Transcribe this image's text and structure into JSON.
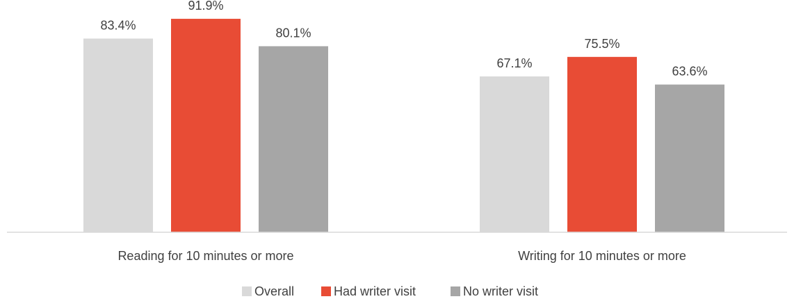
{
  "chart_data": {
    "type": "bar",
    "title": "",
    "xlabel": "",
    "ylabel": "",
    "ylim": [
      0,
      100
    ],
    "grid": false,
    "legend_position": "bottom",
    "categories": [
      "Reading for 10 minutes or more",
      "Writing for 10 minutes or more"
    ],
    "series": [
      {
        "name": "Overall",
        "color": "#d9d9d9",
        "values": [
          83.4,
          67.1
        ],
        "labels": [
          "83.4%",
          "67.1%"
        ]
      },
      {
        "name": "Had writer visit",
        "color": "#e84c35",
        "values": [
          91.9,
          75.5
        ],
        "labels": [
          "91.9%",
          "75.5%"
        ]
      },
      {
        "name": "No writer visit",
        "color": "#a6a6a6",
        "values": [
          80.1,
          63.6
        ],
        "labels": [
          "80.1%",
          "63.6%"
        ]
      }
    ]
  }
}
